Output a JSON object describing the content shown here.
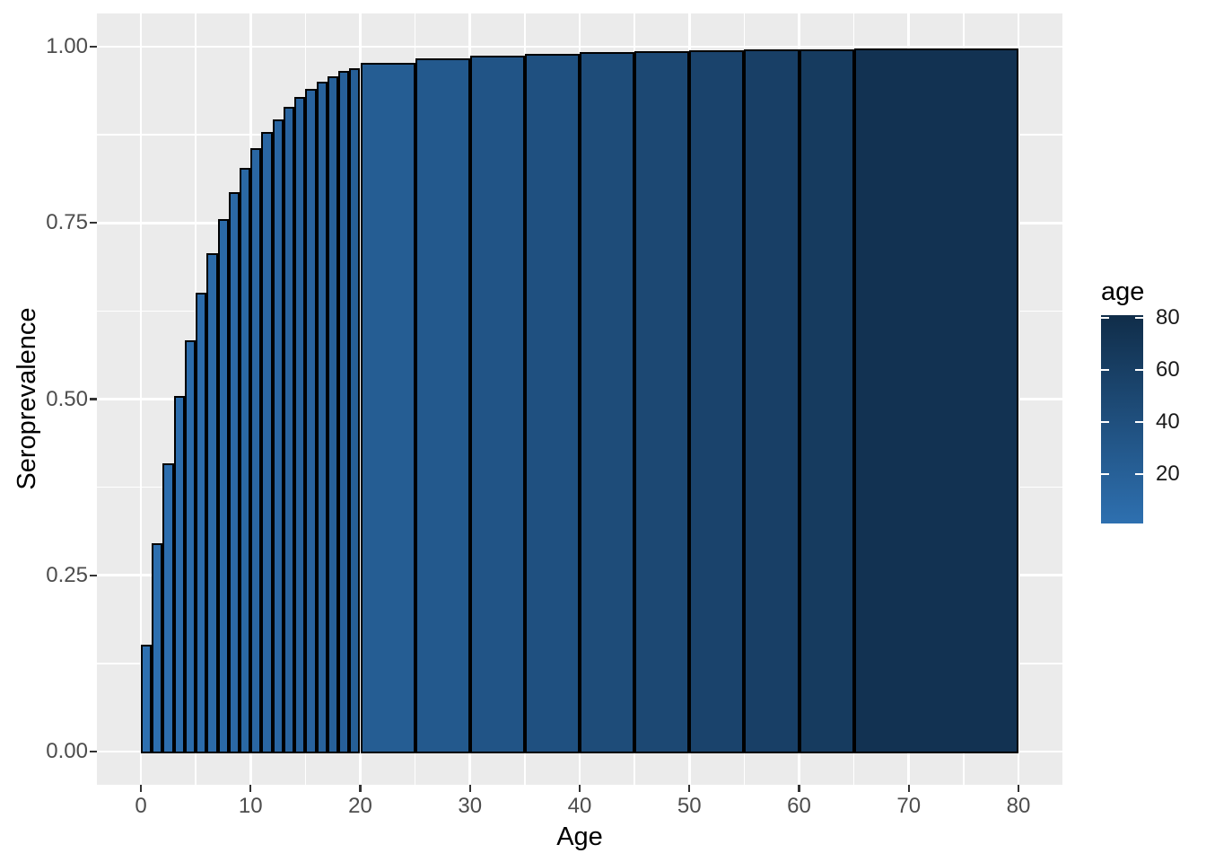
{
  "figure": {
    "background": "#FFFFFF",
    "panel_background": "#EBEBEB",
    "grid_color": "#FFFFFF",
    "axis_tick_color": "#333333",
    "tick_label_color": "#4D4D4D",
    "axis_title_color": "#000000",
    "bar_outline_color": "#000000"
  },
  "chart_data": {
    "type": "bar",
    "title": "",
    "xlabel": "Age",
    "ylabel": "Seroprevalence",
    "xlim": [
      -4,
      84
    ],
    "ylim": [
      -0.047,
      1.047
    ],
    "grid": true,
    "x_major_ticks": [
      0,
      10,
      20,
      30,
      40,
      50,
      60,
      70,
      80
    ],
    "x_minor_ticks": [
      5,
      15,
      25,
      35,
      45,
      55,
      65,
      75
    ],
    "y_major_ticks": [
      0,
      0.25,
      0.5,
      0.75,
      1
    ],
    "y_tick_labels": [
      "0.00",
      "0.25",
      "0.50",
      "0.75",
      "1.00"
    ],
    "y_minor_ticks": [
      0.125,
      0.375,
      0.625,
      0.875
    ],
    "bars": [
      {
        "age_from": 0,
        "age_to": 1,
        "seroprevalence": 0.152,
        "color": "#2E70B0"
      },
      {
        "age_from": 1,
        "age_to": 2,
        "seroprevalence": 0.295,
        "color": "#2D6FAF"
      },
      {
        "age_from": 2,
        "age_to": 3,
        "seroprevalence": 0.409,
        "color": "#2D6EAE"
      },
      {
        "age_from": 3,
        "age_to": 4,
        "seroprevalence": 0.504,
        "color": "#2D6DAC"
      },
      {
        "age_from": 4,
        "age_to": 5,
        "seroprevalence": 0.584,
        "color": "#2C6CAB"
      },
      {
        "age_from": 5,
        "age_to": 6,
        "seroprevalence": 0.651,
        "color": "#2C6BAA"
      },
      {
        "age_from": 6,
        "age_to": 7,
        "seroprevalence": 0.707,
        "color": "#2C6AA8"
      },
      {
        "age_from": 7,
        "age_to": 8,
        "seroprevalence": 0.755,
        "color": "#2B6AA7"
      },
      {
        "age_from": 8,
        "age_to": 9,
        "seroprevalence": 0.794,
        "color": "#2B69A6"
      },
      {
        "age_from": 9,
        "age_to": 10,
        "seroprevalence": 0.828,
        "color": "#2A68A4"
      },
      {
        "age_from": 10,
        "age_to": 11,
        "seroprevalence": 0.856,
        "color": "#2A67A3"
      },
      {
        "age_from": 11,
        "age_to": 12,
        "seroprevalence": 0.879,
        "color": "#2A66A2"
      },
      {
        "age_from": 12,
        "age_to": 13,
        "seroprevalence": 0.897,
        "color": "#2965A1"
      },
      {
        "age_from": 13,
        "age_to": 14,
        "seroprevalence": 0.915,
        "color": "#29649F"
      },
      {
        "age_from": 14,
        "age_to": 15,
        "seroprevalence": 0.929,
        "color": "#28639E"
      },
      {
        "age_from": 15,
        "age_to": 16,
        "seroprevalence": 0.94,
        "color": "#28629D"
      },
      {
        "age_from": 16,
        "age_to": 17,
        "seroprevalence": 0.95,
        "color": "#28629B"
      },
      {
        "age_from": 17,
        "age_to": 18,
        "seroprevalence": 0.958,
        "color": "#27619A"
      },
      {
        "age_from": 18,
        "age_to": 19,
        "seroprevalence": 0.965,
        "color": "#276099"
      },
      {
        "age_from": 19,
        "age_to": 20,
        "seroprevalence": 0.97,
        "color": "#265F97"
      },
      {
        "age_from": 20,
        "age_to": 25,
        "seroprevalence": 0.977,
        "color": "#255D93"
      },
      {
        "age_from": 25,
        "age_to": 30,
        "seroprevalence": 0.983,
        "color": "#23598D"
      },
      {
        "age_from": 30,
        "age_to": 35,
        "seroprevalence": 0.987,
        "color": "#215486"
      },
      {
        "age_from": 35,
        "age_to": 40,
        "seroprevalence": 0.99,
        "color": "#1F5080"
      },
      {
        "age_from": 40,
        "age_to": 45,
        "seroprevalence": 0.992,
        "color": "#1E4C79"
      },
      {
        "age_from": 45,
        "age_to": 50,
        "seroprevalence": 0.994,
        "color": "#1C4873"
      },
      {
        "age_from": 50,
        "age_to": 55,
        "seroprevalence": 0.995,
        "color": "#1A436C"
      },
      {
        "age_from": 55,
        "age_to": 60,
        "seroprevalence": 0.996,
        "color": "#183F66"
      },
      {
        "age_from": 60,
        "age_to": 65,
        "seroprevalence": 0.996,
        "color": "#163B5F"
      },
      {
        "age_from": 65,
        "age_to": 80,
        "seroprevalence": 0.998,
        "color": "#123252"
      }
    ],
    "legend": {
      "title": "age",
      "labels": [
        "80",
        "60",
        "40",
        "20"
      ],
      "label_values": [
        80,
        60,
        40,
        20
      ],
      "color_low": "#2E70B0",
      "color_high": "#102D49",
      "position": "right"
    }
  }
}
